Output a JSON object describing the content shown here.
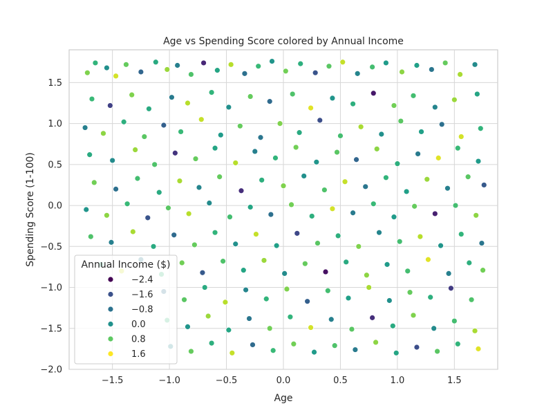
{
  "chart_data": {
    "type": "scatter",
    "title": "Age vs Spending Score colored by Annual Income",
    "xlabel": "Age",
    "ylabel": "Spending Score (1-100)",
    "xlim": [
      -1.88,
      1.88
    ],
    "ylim": [
      -2.0,
      1.9
    ],
    "xticks": [
      -1.5,
      -1.0,
      -0.5,
      0.0,
      0.5,
      1.0,
      1.5
    ],
    "xtick_labels": [
      "−1.5",
      "−1.0",
      "−0.5",
      "0.0",
      "0.5",
      "1.0",
      "1.5"
    ],
    "yticks": [
      -2.0,
      -1.5,
      -1.0,
      -0.5,
      0.0,
      0.5,
      1.0,
      1.5
    ],
    "ytick_labels": [
      "−2.0",
      "−1.5",
      "−1.0",
      "−0.5",
      "0.0",
      "0.5",
      "1.0",
      "1.5"
    ],
    "grid": true,
    "colormap": "viridis",
    "color_range": [
      -2.6,
      2.0
    ],
    "legend": {
      "title": "Annual Income ($)",
      "placement": "lower-left",
      "entries": [
        {
          "label": "−2.4",
          "value": -2.4,
          "color": "#440154"
        },
        {
          "label": "−1.6",
          "value": -1.6,
          "color": "#3b528b"
        },
        {
          "label": "−0.8",
          "value": -0.8,
          "color": "#2c728e"
        },
        {
          "label": "0.0",
          "value": 0.0,
          "color": "#21918c"
        },
        {
          "label": "0.8",
          "value": 0.8,
          "color": "#5ec962"
        },
        {
          "label": "1.6",
          "value": 1.6,
          "color": "#fde725"
        }
      ]
    },
    "points": [
      {
        "x": -1.72,
        "y": 1.62,
        "c": 1.1
      },
      {
        "x": -1.65,
        "y": 1.74,
        "c": 0.4
      },
      {
        "x": -1.55,
        "y": 1.68,
        "c": -0.3
      },
      {
        "x": -1.47,
        "y": 1.58,
        "c": 1.7
      },
      {
        "x": -1.38,
        "y": 1.72,
        "c": 0.9
      },
      {
        "x": -1.25,
        "y": 1.63,
        "c": -1.1
      },
      {
        "x": -1.12,
        "y": 1.75,
        "c": 0.2
      },
      {
        "x": -1.02,
        "y": 1.66,
        "c": 1.3
      },
      {
        "x": -0.93,
        "y": 1.71,
        "c": -0.6
      },
      {
        "x": -0.81,
        "y": 1.6,
        "c": 0.7
      },
      {
        "x": -0.7,
        "y": 1.74,
        "c": -2.1
      },
      {
        "x": -0.58,
        "y": 1.65,
        "c": 0.1
      },
      {
        "x": -0.46,
        "y": 1.72,
        "c": 1.5
      },
      {
        "x": -0.34,
        "y": 1.61,
        "c": -0.9
      },
      {
        "x": -0.22,
        "y": 1.7,
        "c": 0.5
      },
      {
        "x": -0.1,
        "y": 1.76,
        "c": -0.2
      },
      {
        "x": 0.02,
        "y": 1.64,
        "c": 1.0
      },
      {
        "x": 0.15,
        "y": 1.73,
        "c": 0.3
      },
      {
        "x": 0.28,
        "y": 1.62,
        "c": -1.4
      },
      {
        "x": 0.4,
        "y": 1.7,
        "c": 0.8
      },
      {
        "x": 0.52,
        "y": 1.75,
        "c": 1.6
      },
      {
        "x": 0.65,
        "y": 1.61,
        "c": -0.5
      },
      {
        "x": 0.78,
        "y": 1.69,
        "c": 0.6
      },
      {
        "x": 0.9,
        "y": 1.74,
        "c": -0.1
      },
      {
        "x": 1.04,
        "y": 1.63,
        "c": 1.2
      },
      {
        "x": 1.17,
        "y": 1.71,
        "c": 0.0
      },
      {
        "x": 1.3,
        "y": 1.66,
        "c": -0.8
      },
      {
        "x": 1.42,
        "y": 1.74,
        "c": 0.9
      },
      {
        "x": 1.55,
        "y": 1.6,
        "c": 1.4
      },
      {
        "x": 1.68,
        "y": 1.72,
        "c": -0.4
      },
      {
        "x": -1.68,
        "y": 1.3,
        "c": 0.5
      },
      {
        "x": -1.52,
        "y": 1.22,
        "c": -1.7
      },
      {
        "x": -1.33,
        "y": 1.35,
        "c": 1.1
      },
      {
        "x": -1.18,
        "y": 1.18,
        "c": 0.2
      },
      {
        "x": -0.98,
        "y": 1.32,
        "c": -0.7
      },
      {
        "x": -0.84,
        "y": 1.25,
        "c": 1.5
      },
      {
        "x": -0.63,
        "y": 1.38,
        "c": 0.4
      },
      {
        "x": -0.48,
        "y": 1.2,
        "c": -0.3
      },
      {
        "x": -0.29,
        "y": 1.33,
        "c": 0.9
      },
      {
        "x": -0.12,
        "y": 1.27,
        "c": -1.0
      },
      {
        "x": 0.08,
        "y": 1.36,
        "c": 0.7
      },
      {
        "x": 0.24,
        "y": 1.19,
        "c": 1.8
      },
      {
        "x": 0.43,
        "y": 1.31,
        "c": -0.2
      },
      {
        "x": 0.61,
        "y": 1.24,
        "c": 0.3
      },
      {
        "x": 0.79,
        "y": 1.37,
        "c": -2.3
      },
      {
        "x": 0.97,
        "y": 1.22,
        "c": 1.0
      },
      {
        "x": 1.14,
        "y": 1.34,
        "c": 0.6
      },
      {
        "x": 1.33,
        "y": 1.2,
        "c": -0.5
      },
      {
        "x": 1.5,
        "y": 1.29,
        "c": 1.3
      },
      {
        "x": 1.7,
        "y": 1.36,
        "c": 0.1
      },
      {
        "x": -1.74,
        "y": 0.95,
        "c": -0.6
      },
      {
        "x": -1.58,
        "y": 0.88,
        "c": 1.2
      },
      {
        "x": -1.4,
        "y": 1.02,
        "c": 0.3
      },
      {
        "x": -1.22,
        "y": 0.84,
        "c": 0.8
      },
      {
        "x": -1.05,
        "y": 0.98,
        "c": -1.2
      },
      {
        "x": -0.9,
        "y": 0.9,
        "c": 0.5
      },
      {
        "x": -0.72,
        "y": 1.05,
        "c": 1.6
      },
      {
        "x": -0.55,
        "y": 0.86,
        "c": -0.1
      },
      {
        "x": -0.38,
        "y": 0.97,
        "c": 0.9
      },
      {
        "x": -0.2,
        "y": 0.83,
        "c": -0.8
      },
      {
        "x": -0.03,
        "y": 1.0,
        "c": 1.1
      },
      {
        "x": 0.14,
        "y": 0.89,
        "c": 0.2
      },
      {
        "x": 0.32,
        "y": 1.04,
        "c": -1.5
      },
      {
        "x": 0.5,
        "y": 0.85,
        "c": 0.6
      },
      {
        "x": 0.68,
        "y": 0.96,
        "c": 1.4
      },
      {
        "x": 0.86,
        "y": 0.87,
        "c": -0.3
      },
      {
        "x": 1.03,
        "y": 1.03,
        "c": 0.8
      },
      {
        "x": 1.21,
        "y": 0.9,
        "c": 0.0
      },
      {
        "x": 1.39,
        "y": 0.99,
        "c": -0.9
      },
      {
        "x": 1.56,
        "y": 0.84,
        "c": 1.7
      },
      {
        "x": 1.73,
        "y": 0.94,
        "c": 0.4
      },
      {
        "x": -1.7,
        "y": 0.62,
        "c": 0.2
      },
      {
        "x": -1.5,
        "y": 0.55,
        "c": -0.4
      },
      {
        "x": -1.3,
        "y": 0.68,
        "c": 1.3
      },
      {
        "x": -1.13,
        "y": 0.5,
        "c": 0.7
      },
      {
        "x": -0.95,
        "y": 0.64,
        "c": -1.9
      },
      {
        "x": -0.77,
        "y": 0.57,
        "c": 0.9
      },
      {
        "x": -0.6,
        "y": 0.7,
        "c": 0.1
      },
      {
        "x": -0.42,
        "y": 0.52,
        "c": 1.5
      },
      {
        "x": -0.25,
        "y": 0.66,
        "c": -0.6
      },
      {
        "x": -0.07,
        "y": 0.58,
        "c": 0.4
      },
      {
        "x": 0.11,
        "y": 0.71,
        "c": 1.0
      },
      {
        "x": 0.29,
        "y": 0.53,
        "c": -0.2
      },
      {
        "x": 0.47,
        "y": 0.65,
        "c": 0.8
      },
      {
        "x": 0.64,
        "y": 0.56,
        "c": -1.1
      },
      {
        "x": 0.82,
        "y": 0.69,
        "c": 1.2
      },
      {
        "x": 1.0,
        "y": 0.51,
        "c": 0.3
      },
      {
        "x": 1.18,
        "y": 0.63,
        "c": -0.7
      },
      {
        "x": 1.36,
        "y": 0.58,
        "c": 1.8
      },
      {
        "x": 1.53,
        "y": 0.7,
        "c": 0.5
      },
      {
        "x": 1.71,
        "y": 0.54,
        "c": -0.1
      },
      {
        "x": -1.66,
        "y": 0.28,
        "c": 1.0
      },
      {
        "x": -1.47,
        "y": 0.2,
        "c": -0.9
      },
      {
        "x": -1.28,
        "y": 0.33,
        "c": 0.6
      },
      {
        "x": -1.09,
        "y": 0.16,
        "c": 0.2
      },
      {
        "x": -0.91,
        "y": 0.3,
        "c": 1.4
      },
      {
        "x": -0.74,
        "y": 0.22,
        "c": -0.5
      },
      {
        "x": -0.56,
        "y": 0.35,
        "c": 0.9
      },
      {
        "x": -0.37,
        "y": 0.18,
        "c": -2.0
      },
      {
        "x": -0.19,
        "y": 0.31,
        "c": 0.3
      },
      {
        "x": 0.0,
        "y": 0.24,
        "c": 1.1
      },
      {
        "x": 0.18,
        "y": 0.36,
        "c": -0.3
      },
      {
        "x": 0.36,
        "y": 0.19,
        "c": 0.7
      },
      {
        "x": 0.54,
        "y": 0.29,
        "c": 1.6
      },
      {
        "x": 0.72,
        "y": 0.23,
        "c": -0.8
      },
      {
        "x": 0.9,
        "y": 0.34,
        "c": 0.4
      },
      {
        "x": 1.08,
        "y": 0.17,
        "c": 0.0
      },
      {
        "x": 1.26,
        "y": 0.32,
        "c": 1.3
      },
      {
        "x": 1.44,
        "y": 0.21,
        "c": -0.6
      },
      {
        "x": 1.62,
        "y": 0.35,
        "c": 0.8
      },
      {
        "x": 1.76,
        "y": 0.25,
        "c": -1.3
      },
      {
        "x": -1.73,
        "y": -0.05,
        "c": -0.2
      },
      {
        "x": -1.55,
        "y": -0.12,
        "c": 1.2
      },
      {
        "x": -1.37,
        "y": 0.02,
        "c": 0.5
      },
      {
        "x": -1.19,
        "y": -0.15,
        "c": -1.4
      },
      {
        "x": -1.01,
        "y": -0.03,
        "c": 0.8
      },
      {
        "x": -0.83,
        "y": -0.1,
        "c": 1.5
      },
      {
        "x": -0.65,
        "y": 0.03,
        "c": -0.4
      },
      {
        "x": -0.47,
        "y": -0.14,
        "c": 0.6
      },
      {
        "x": -0.29,
        "y": -0.02,
        "c": 0.1
      },
      {
        "x": -0.11,
        "y": -0.11,
        "c": -0.9
      },
      {
        "x": 0.07,
        "y": 0.01,
        "c": 1.0
      },
      {
        "x": 0.25,
        "y": -0.13,
        "c": 0.3
      },
      {
        "x": 0.43,
        "y": -0.04,
        "c": 1.7
      },
      {
        "x": 0.61,
        "y": -0.09,
        "c": -0.7
      },
      {
        "x": 0.79,
        "y": 0.02,
        "c": 0.5
      },
      {
        "x": 0.97,
        "y": -0.14,
        "c": -0.1
      },
      {
        "x": 1.15,
        "y": -0.01,
        "c": 0.9
      },
      {
        "x": 1.33,
        "y": -0.1,
        "c": -2.2
      },
      {
        "x": 1.51,
        "y": 0.0,
        "c": 0.6
      },
      {
        "x": 1.69,
        "y": -0.12,
        "c": 1.2
      },
      {
        "x": -1.69,
        "y": -0.38,
        "c": 0.7
      },
      {
        "x": -1.51,
        "y": -0.45,
        "c": -0.6
      },
      {
        "x": -1.32,
        "y": -0.32,
        "c": 1.4
      },
      {
        "x": -1.14,
        "y": -0.5,
        "c": 0.2
      },
      {
        "x": -0.96,
        "y": -0.36,
        "c": -1.0
      },
      {
        "x": -0.78,
        "y": -0.48,
        "c": 0.9
      },
      {
        "x": -0.6,
        "y": -0.33,
        "c": 0.4
      },
      {
        "x": -0.42,
        "y": -0.47,
        "c": -0.3
      },
      {
        "x": -0.24,
        "y": -0.35,
        "c": 1.6
      },
      {
        "x": -0.06,
        "y": -0.49,
        "c": 0.0
      },
      {
        "x": 0.12,
        "y": -0.34,
        "c": -1.6
      },
      {
        "x": 0.3,
        "y": -0.46,
        "c": 0.8
      },
      {
        "x": 0.48,
        "y": -0.37,
        "c": 0.3
      },
      {
        "x": 0.66,
        "y": -0.5,
        "c": 1.1
      },
      {
        "x": 0.84,
        "y": -0.33,
        "c": -0.5
      },
      {
        "x": 1.02,
        "y": -0.44,
        "c": 0.6
      },
      {
        "x": 1.2,
        "y": -0.38,
        "c": 1.5
      },
      {
        "x": 1.38,
        "y": -0.49,
        "c": -0.2
      },
      {
        "x": 1.56,
        "y": -0.35,
        "c": 0.4
      },
      {
        "x": 1.74,
        "y": -0.46,
        "c": -0.8
      },
      {
        "x": -1.6,
        "y": -0.72,
        "c": 0.3
      },
      {
        "x": -1.42,
        "y": -0.8,
        "c": 1.7
      },
      {
        "x": -1.25,
        "y": -0.66,
        "c": -0.7
      },
      {
        "x": -1.07,
        "y": -0.84,
        "c": 0.5
      },
      {
        "x": -0.89,
        "y": -0.7,
        "c": 1.0
      },
      {
        "x": -0.71,
        "y": -0.82,
        "c": -1.3
      },
      {
        "x": -0.53,
        "y": -0.68,
        "c": 0.7
      },
      {
        "x": -0.35,
        "y": -0.79,
        "c": 0.1
      },
      {
        "x": -0.17,
        "y": -0.67,
        "c": 1.3
      },
      {
        "x": 0.01,
        "y": -0.83,
        "c": -0.4
      },
      {
        "x": 0.19,
        "y": -0.71,
        "c": 0.9
      },
      {
        "x": 0.37,
        "y": -0.81,
        "c": -2.4
      },
      {
        "x": 0.55,
        "y": -0.69,
        "c": 0.2
      },
      {
        "x": 0.73,
        "y": -0.85,
        "c": 1.2
      },
      {
        "x": 0.91,
        "y": -0.72,
        "c": -0.1
      },
      {
        "x": 1.09,
        "y": -0.8,
        "c": 0.6
      },
      {
        "x": 1.27,
        "y": -0.66,
        "c": 1.8
      },
      {
        "x": 1.45,
        "y": -0.83,
        "c": -0.6
      },
      {
        "x": 1.63,
        "y": -0.7,
        "c": 0.3
      },
      {
        "x": 1.75,
        "y": -0.79,
        "c": 1.0
      },
      {
        "x": -1.05,
        "y": -1.05,
        "c": -0.9
      },
      {
        "x": -0.87,
        "y": -1.15,
        "c": 0.8
      },
      {
        "x": -0.69,
        "y": -1.0,
        "c": 0.2
      },
      {
        "x": -0.51,
        "y": -1.18,
        "c": 1.5
      },
      {
        "x": -0.33,
        "y": -1.03,
        "c": -0.5
      },
      {
        "x": -0.15,
        "y": -1.14,
        "c": 0.4
      },
      {
        "x": 0.03,
        "y": -1.02,
        "c": 1.1
      },
      {
        "x": 0.21,
        "y": -1.17,
        "c": -1.2
      },
      {
        "x": 0.39,
        "y": -1.04,
        "c": 0.6
      },
      {
        "x": 0.57,
        "y": -1.13,
        "c": 0.0
      },
      {
        "x": 0.75,
        "y": -1.0,
        "c": 1.4
      },
      {
        "x": 0.93,
        "y": -1.16,
        "c": -0.3
      },
      {
        "x": 1.11,
        "y": -1.06,
        "c": 0.9
      },
      {
        "x": 1.29,
        "y": -1.12,
        "c": 0.3
      },
      {
        "x": 1.47,
        "y": -1.01,
        "c": -1.8
      },
      {
        "x": 1.65,
        "y": -1.15,
        "c": 0.7
      },
      {
        "x": -1.02,
        "y": -1.4,
        "c": 0.5
      },
      {
        "x": -0.84,
        "y": -1.48,
        "c": -0.2
      },
      {
        "x": -0.66,
        "y": -1.35,
        "c": 1.3
      },
      {
        "x": -0.48,
        "y": -1.52,
        "c": 0.1
      },
      {
        "x": -0.3,
        "y": -1.38,
        "c": -0.8
      },
      {
        "x": -0.12,
        "y": -1.5,
        "c": 1.0
      },
      {
        "x": 0.06,
        "y": -1.36,
        "c": 0.4
      },
      {
        "x": 0.24,
        "y": -1.49,
        "c": 1.7
      },
      {
        "x": 0.42,
        "y": -1.39,
        "c": -0.6
      },
      {
        "x": 0.6,
        "y": -1.51,
        "c": 0.8
      },
      {
        "x": 0.78,
        "y": -1.37,
        "c": -2.0
      },
      {
        "x": 0.96,
        "y": -1.47,
        "c": 0.2
      },
      {
        "x": 1.14,
        "y": -1.34,
        "c": 1.1
      },
      {
        "x": 1.32,
        "y": -1.5,
        "c": -0.4
      },
      {
        "x": 1.5,
        "y": -1.41,
        "c": 0.6
      },
      {
        "x": 1.68,
        "y": -1.53,
        "c": 1.4
      },
      {
        "x": -0.99,
        "y": -1.72,
        "c": -0.5
      },
      {
        "x": -0.81,
        "y": -1.78,
        "c": 0.9
      },
      {
        "x": -0.63,
        "y": -1.68,
        "c": 0.3
      },
      {
        "x": -0.45,
        "y": -1.8,
        "c": 1.6
      },
      {
        "x": -0.27,
        "y": -1.7,
        "c": -1.0
      },
      {
        "x": -0.09,
        "y": -1.77,
        "c": 0.5
      },
      {
        "x": 0.09,
        "y": -1.69,
        "c": 1.0
      },
      {
        "x": 0.27,
        "y": -1.79,
        "c": -0.1
      },
      {
        "x": 0.45,
        "y": -1.71,
        "c": 0.7
      },
      {
        "x": 0.63,
        "y": -1.76,
        "c": -0.7
      },
      {
        "x": 0.81,
        "y": -1.67,
        "c": 1.2
      },
      {
        "x": 0.99,
        "y": -1.8,
        "c": 0.1
      },
      {
        "x": 1.17,
        "y": -1.73,
        "c": -1.5
      },
      {
        "x": 1.35,
        "y": -1.78,
        "c": 0.8
      },
      {
        "x": 1.53,
        "y": -1.69,
        "c": 0.4
      },
      {
        "x": 1.71,
        "y": -1.75,
        "c": 1.8
      }
    ]
  }
}
